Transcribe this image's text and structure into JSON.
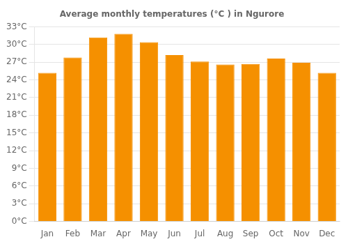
{
  "chart_data": {
    "type": "bar",
    "title": "Average monthly temperatures (°C ) in Ngurore",
    "categories": [
      "Jan",
      "Feb",
      "Mar",
      "Apr",
      "May",
      "Jun",
      "Jul",
      "Aug",
      "Sep",
      "Oct",
      "Nov",
      "Dec"
    ],
    "values": [
      25.2,
      27.8,
      31.2,
      31.8,
      30.4,
      28.2,
      27.1,
      26.6,
      26.7,
      27.6,
      26.9,
      25.2
    ],
    "color": "#F59000",
    "ylim": [
      0,
      33
    ],
    "yticks": [
      {
        "value": 0,
        "label": "0°C"
      },
      {
        "value": 3,
        "label": "3°C"
      },
      {
        "value": 6,
        "label": "6°C"
      },
      {
        "value": 9,
        "label": "9°C"
      },
      {
        "value": 12,
        "label": "12°C"
      },
      {
        "value": 15,
        "label": "15°C"
      },
      {
        "value": 18,
        "label": "18°C"
      },
      {
        "value": 21,
        "label": "21°C"
      },
      {
        "value": 24,
        "label": "24°C"
      },
      {
        "value": 27,
        "label": "27°C"
      },
      {
        "value": 30,
        "label": "30°C"
      },
      {
        "value": 33,
        "label": "33°C"
      }
    ],
    "grid": true
  }
}
